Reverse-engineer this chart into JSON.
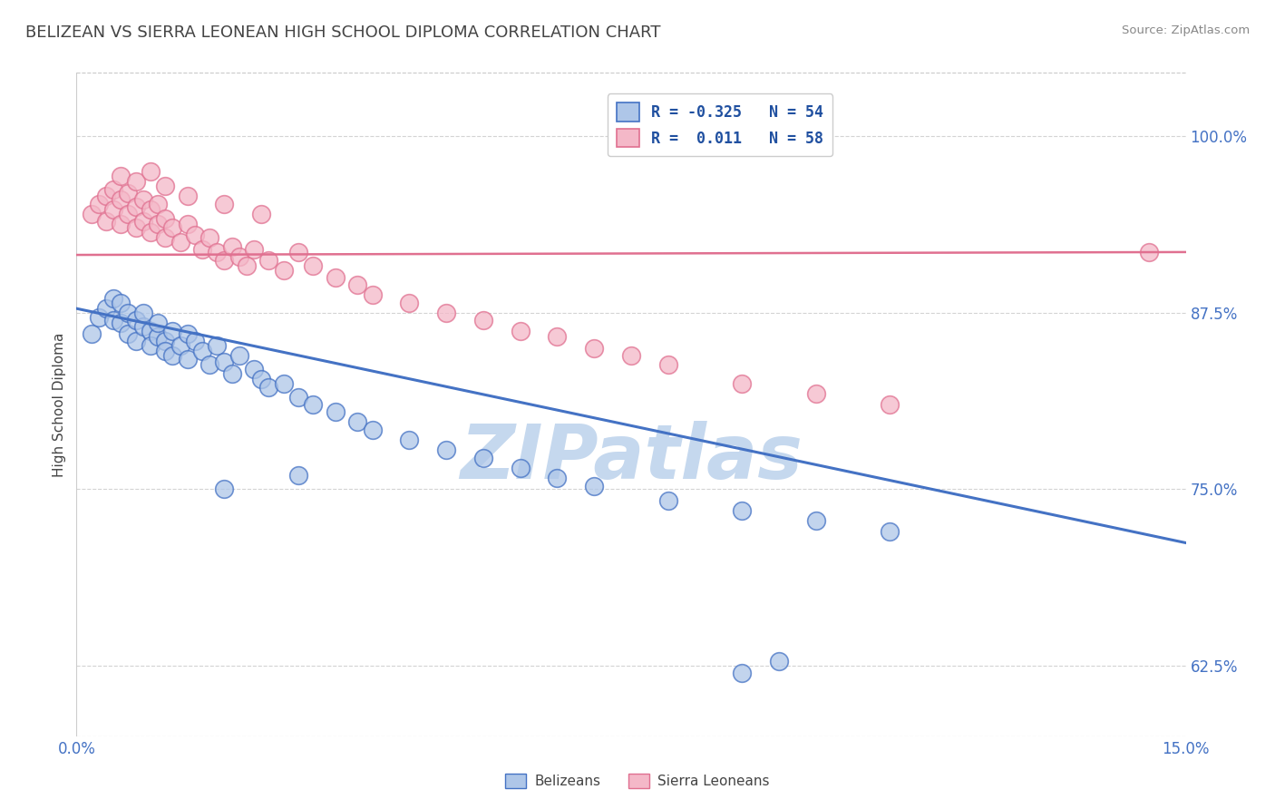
{
  "title": "BELIZEAN VS SIERRA LEONEAN HIGH SCHOOL DIPLOMA CORRELATION CHART",
  "source": "Source: ZipAtlas.com",
  "ylabel": "High School Diploma",
  "ytick_labels": [
    "62.5%",
    "75.0%",
    "87.5%",
    "100.0%"
  ],
  "ytick_values": [
    0.625,
    0.75,
    0.875,
    1.0
  ],
  "xlim": [
    0.0,
    0.15
  ],
  "ylim": [
    0.575,
    1.045
  ],
  "blue_color": "#aec6e8",
  "pink_color": "#f4b8c8",
  "trend_blue_color": "#4472c4",
  "trend_pink_color": "#e07090",
  "watermark": "ZIPatlas",
  "watermark_color": "#c5d8ee",
  "blue_r": "-0.325",
  "blue_n": "54",
  "pink_r": "0.011",
  "pink_n": "58",
  "blue_trend_x": [
    0.0,
    0.15
  ],
  "blue_trend_y": [
    0.878,
    0.712
  ],
  "pink_trend_x": [
    0.0,
    0.15
  ],
  "pink_trend_y": [
    0.916,
    0.918
  ],
  "bg_color": "#ffffff",
  "grid_color": "#c8c8c8",
  "title_color": "#444444",
  "tick_color": "#4472c4",
  "blue_points_x": [
    0.002,
    0.003,
    0.004,
    0.005,
    0.005,
    0.006,
    0.006,
    0.007,
    0.007,
    0.008,
    0.008,
    0.009,
    0.009,
    0.01,
    0.01,
    0.011,
    0.011,
    0.012,
    0.012,
    0.013,
    0.013,
    0.014,
    0.015,
    0.015,
    0.016,
    0.017,
    0.018,
    0.019,
    0.02,
    0.021,
    0.022,
    0.024,
    0.025,
    0.026,
    0.028,
    0.03,
    0.032,
    0.035,
    0.038,
    0.04,
    0.045,
    0.05,
    0.055,
    0.06,
    0.065,
    0.07,
    0.08,
    0.09,
    0.1,
    0.11,
    0.02,
    0.03,
    0.095,
    0.09
  ],
  "blue_points_y": [
    0.86,
    0.872,
    0.878,
    0.87,
    0.885,
    0.868,
    0.882,
    0.875,
    0.86,
    0.87,
    0.855,
    0.865,
    0.875,
    0.862,
    0.852,
    0.858,
    0.868,
    0.855,
    0.848,
    0.862,
    0.845,
    0.852,
    0.86,
    0.842,
    0.855,
    0.848,
    0.838,
    0.852,
    0.84,
    0.832,
    0.845,
    0.835,
    0.828,
    0.822,
    0.825,
    0.815,
    0.81,
    0.805,
    0.798,
    0.792,
    0.785,
    0.778,
    0.772,
    0.765,
    0.758,
    0.752,
    0.742,
    0.735,
    0.728,
    0.72,
    0.75,
    0.76,
    0.628,
    0.62
  ],
  "pink_points_x": [
    0.002,
    0.003,
    0.004,
    0.004,
    0.005,
    0.005,
    0.006,
    0.006,
    0.007,
    0.007,
    0.008,
    0.008,
    0.009,
    0.009,
    0.01,
    0.01,
    0.011,
    0.011,
    0.012,
    0.012,
    0.013,
    0.014,
    0.015,
    0.016,
    0.017,
    0.018,
    0.019,
    0.02,
    0.021,
    0.022,
    0.023,
    0.024,
    0.026,
    0.028,
    0.03,
    0.032,
    0.035,
    0.038,
    0.04,
    0.045,
    0.05,
    0.055,
    0.06,
    0.065,
    0.07,
    0.075,
    0.08,
    0.09,
    0.1,
    0.11,
    0.006,
    0.008,
    0.01,
    0.012,
    0.015,
    0.02,
    0.025,
    0.145
  ],
  "pink_points_y": [
    0.945,
    0.952,
    0.94,
    0.958,
    0.948,
    0.962,
    0.938,
    0.955,
    0.945,
    0.96,
    0.935,
    0.95,
    0.94,
    0.955,
    0.932,
    0.948,
    0.938,
    0.952,
    0.928,
    0.942,
    0.935,
    0.925,
    0.938,
    0.93,
    0.92,
    0.928,
    0.918,
    0.912,
    0.922,
    0.915,
    0.908,
    0.92,
    0.912,
    0.905,
    0.918,
    0.908,
    0.9,
    0.895,
    0.888,
    0.882,
    0.875,
    0.87,
    0.862,
    0.858,
    0.85,
    0.845,
    0.838,
    0.825,
    0.818,
    0.81,
    0.972,
    0.968,
    0.975,
    0.965,
    0.958,
    0.952,
    0.945,
    0.918
  ]
}
